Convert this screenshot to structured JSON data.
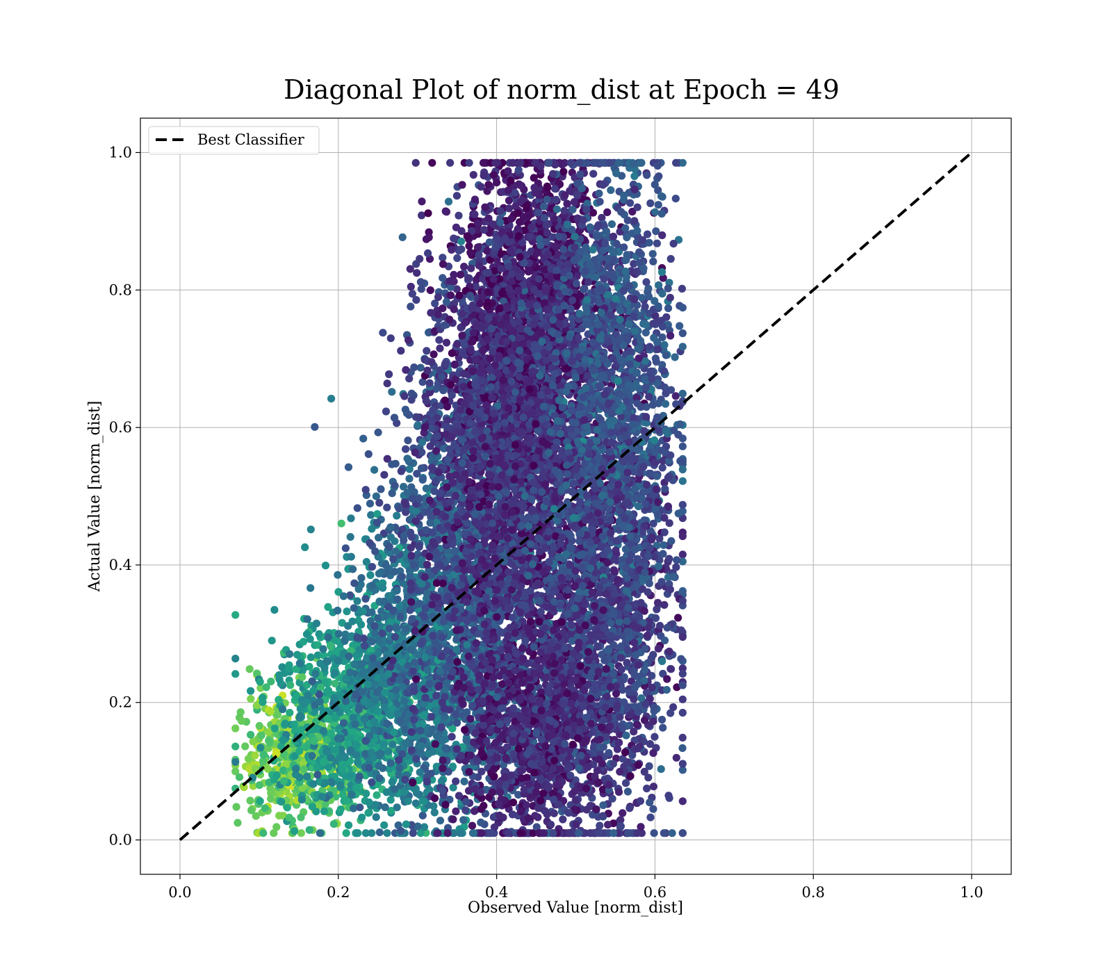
{
  "chart_data": {
    "type": "scatter",
    "title": "Diagonal Plot of norm_dist at Epoch = 49",
    "xlabel": "Observed Value [norm_dist]",
    "ylabel": "Actual Value [norm_dist]",
    "xlim": [
      -0.05,
      1.05
    ],
    "ylim": [
      -0.05,
      1.05
    ],
    "xticks": [
      "0.0",
      "0.2",
      "0.4",
      "0.6",
      "0.8",
      "1.0"
    ],
    "yticks": [
      "0.0",
      "0.2",
      "0.4",
      "0.6",
      "0.8",
      "1.0"
    ],
    "grid": true,
    "colormap": "viridis",
    "legend": {
      "placement": "upper-left",
      "entries": [
        {
          "label": "Best Classifier",
          "style": "dashed",
          "color": "#000000"
        }
      ]
    },
    "reference_line": {
      "label": "Best Classifier",
      "x": [
        0.0,
        1.0
      ],
      "y": [
        0.0,
        1.0
      ]
    },
    "point_clusters": [
      {
        "x_center": 0.14,
        "y_center": 0.12,
        "x_spread": 0.035,
        "y_spread": 0.045,
        "count": 500,
        "color_level": 0.78
      },
      {
        "x_center": 0.22,
        "y_center": 0.18,
        "x_spread": 0.05,
        "y_spread": 0.07,
        "count": 900,
        "color_level": 0.55
      },
      {
        "x_center": 0.3,
        "y_center": 0.25,
        "x_spread": 0.055,
        "y_spread": 0.11,
        "count": 1200,
        "color_level": 0.4
      },
      {
        "x_center": 0.36,
        "y_center": 0.4,
        "x_spread": 0.05,
        "y_spread": 0.16,
        "count": 1400,
        "color_level": 0.28
      },
      {
        "x_center": 0.4,
        "y_center": 0.63,
        "x_spread": 0.045,
        "y_spread": 0.13,
        "count": 1300,
        "color_level": 0.16
      },
      {
        "x_center": 0.45,
        "y_center": 0.78,
        "x_spread": 0.045,
        "y_spread": 0.11,
        "count": 1300,
        "color_level": 0.08
      },
      {
        "x_center": 0.46,
        "y_center": 0.45,
        "x_spread": 0.06,
        "y_spread": 0.22,
        "count": 2400,
        "color_level": 0.14
      },
      {
        "x_center": 0.55,
        "y_center": 0.65,
        "x_spread": 0.04,
        "y_spread": 0.17,
        "count": 1400,
        "color_level": 0.26
      },
      {
        "x_center": 0.54,
        "y_center": 0.3,
        "x_spread": 0.045,
        "y_spread": 0.14,
        "count": 1000,
        "color_level": 0.2
      },
      {
        "x_center": 0.45,
        "y_center": 0.15,
        "x_spread": 0.05,
        "y_spread": 0.07,
        "count": 800,
        "color_level": 0.12
      }
    ]
  }
}
